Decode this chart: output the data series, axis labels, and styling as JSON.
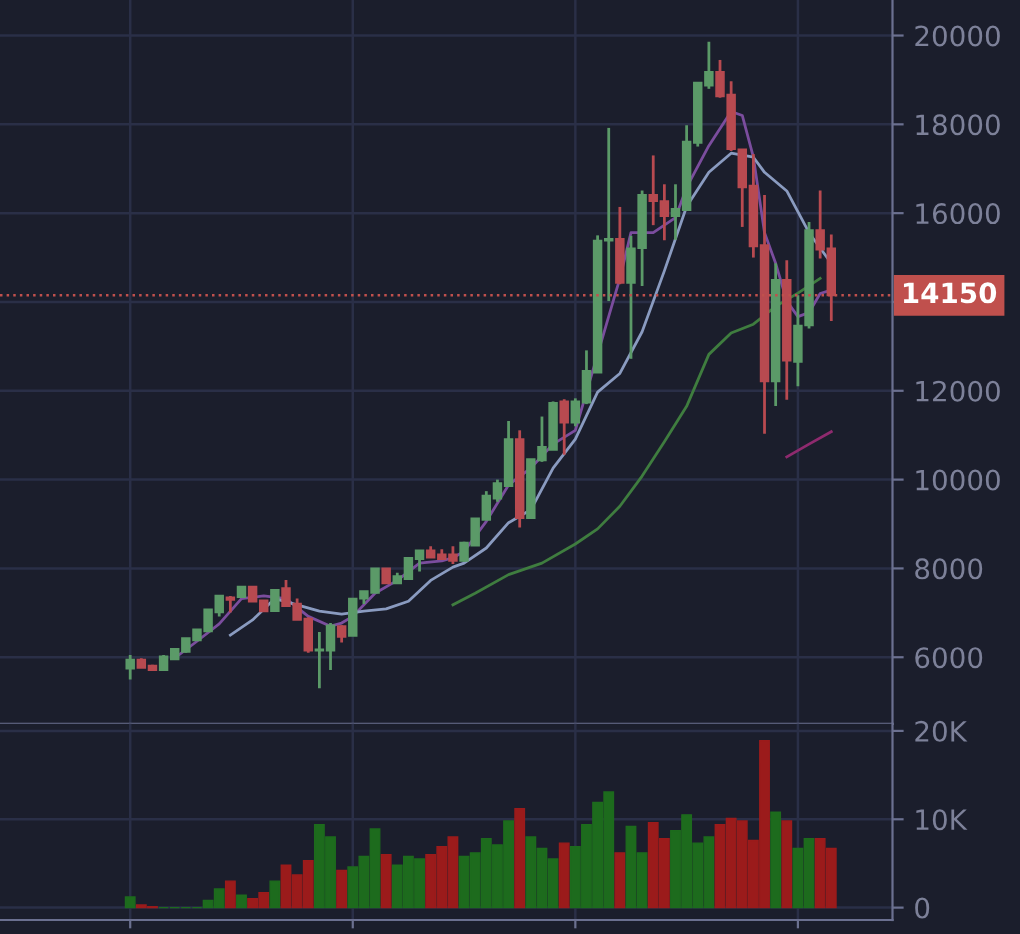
{
  "chart_data": [
    {
      "type": "candlestick",
      "categories": [
        null,
        null,
        null,
        null,
        null,
        null,
        null,
        null,
        null,
        null,
        null,
        null,
        null,
        null,
        null,
        null,
        null,
        null,
        null,
        null,
        null,
        null,
        null,
        null,
        null,
        null,
        null,
        null,
        null,
        null,
        null,
        null,
        null,
        null,
        null,
        null,
        null,
        null,
        null,
        null,
        null,
        null,
        null,
        null,
        null,
        null,
        null,
        null,
        null,
        null,
        null,
        null,
        null,
        null,
        null,
        null,
        null,
        null,
        null,
        null,
        null,
        null,
        null,
        null
      ],
      "ohlc": [
        [
          5740,
          6050,
          5500,
          5950
        ],
        [
          5950,
          5980,
          5760,
          5760
        ],
        [
          5810,
          5830,
          5710,
          5710
        ],
        [
          5710,
          6050,
          5700,
          6020
        ],
        [
          5950,
          6190,
          5950,
          6190
        ],
        [
          6120,
          6430,
          6100,
          6430
        ],
        [
          6380,
          6630,
          6380,
          6630
        ],
        [
          6580,
          7080,
          6580,
          7080
        ],
        [
          7010,
          7390,
          6920,
          7390
        ],
        [
          7350,
          7380,
          7010,
          7290
        ],
        [
          7350,
          7590,
          7350,
          7590
        ],
        [
          7590,
          7590,
          7250,
          7250
        ],
        [
          7280,
          7280,
          7030,
          7030
        ],
        [
          7040,
          7520,
          7040,
          7520
        ],
        [
          7560,
          7740,
          7150,
          7150
        ],
        [
          7210,
          7320,
          6840,
          6840
        ],
        [
          6870,
          6900,
          6100,
          6150
        ],
        [
          6150,
          6570,
          5300,
          6180
        ],
        [
          6150,
          6770,
          5710,
          6720
        ],
        [
          6700,
          6720,
          6330,
          6460
        ],
        [
          6480,
          7320,
          6480,
          7320
        ],
        [
          7320,
          7490,
          7200,
          7490
        ],
        [
          7450,
          8000,
          7450,
          8000
        ],
        [
          8000,
          8000,
          7660,
          7660
        ],
        [
          7660,
          7900,
          7660,
          7830
        ],
        [
          7760,
          8240,
          7760,
          8240
        ],
        [
          8210,
          8410,
          7930,
          8410
        ],
        [
          8410,
          8500,
          8240,
          8240
        ],
        [
          8320,
          8430,
          8200,
          8210
        ],
        [
          8320,
          8500,
          8100,
          8170
        ],
        [
          8170,
          8600,
          8150,
          8580
        ],
        [
          8510,
          9130,
          8510,
          9130
        ],
        [
          9090,
          9740,
          9090,
          9640
        ],
        [
          9570,
          10000,
          9500,
          9920
        ],
        [
          9850,
          11320,
          9850,
          10910
        ],
        [
          10910,
          11110,
          8920,
          9130
        ],
        [
          9130,
          10460,
          9130,
          10460
        ],
        [
          10430,
          11420,
          10400,
          10740
        ],
        [
          10670,
          11760,
          10670,
          11730
        ],
        [
          11760,
          11810,
          10560,
          11280
        ],
        [
          11280,
          11830,
          11200,
          11760
        ],
        [
          11730,
          12910,
          11700,
          12450
        ],
        [
          12410,
          15500,
          12400,
          15380
        ],
        [
          15380,
          17920,
          14020,
          15420
        ],
        [
          15420,
          16140,
          14400,
          14430
        ],
        [
          14430,
          15490,
          12720,
          15210
        ],
        [
          15210,
          16510,
          14360,
          16410
        ],
        [
          16410,
          17300,
          15730,
          16270
        ],
        [
          16270,
          16650,
          15390,
          15930
        ],
        [
          15930,
          16650,
          15400,
          16100
        ],
        [
          16070,
          17980,
          16050,
          17610
        ],
        [
          17580,
          18940,
          17500,
          18940
        ],
        [
          18870,
          19860,
          18800,
          19180
        ],
        [
          19180,
          19450,
          18600,
          18630
        ],
        [
          18670,
          18970,
          17400,
          17440
        ],
        [
          17440,
          17440,
          15690,
          16580
        ],
        [
          16620,
          17330,
          15000,
          15250
        ],
        [
          15280,
          16410,
          11030,
          12210
        ],
        [
          12210,
          14870,
          11660,
          14500
        ],
        [
          14500,
          14940,
          11800,
          12680
        ],
        [
          12650,
          14150,
          12100,
          13470
        ],
        [
          13470,
          15800,
          13400,
          15620
        ],
        [
          15620,
          16510,
          14980,
          15180
        ],
        [
          15210,
          15520,
          13570,
          14150
        ]
      ],
      "colors": [
        "#5b9a68",
        "#b84a50",
        "#b84a50",
        "#5b9a68",
        "#5b9a68",
        "#5b9a68",
        "#5b9a68",
        "#5b9a68",
        "#5b9a68",
        "#b84a50",
        "#5b9a68",
        "#b84a50",
        "#b84a50",
        "#5b9a68",
        "#b84a50",
        "#b84a50",
        "#b84a50",
        "#5b9a68",
        "#5b9a68",
        "#b84a50",
        "#5b9a68",
        "#5b9a68",
        "#5b9a68",
        "#b84a50",
        "#5b9a68",
        "#5b9a68",
        "#5b9a68",
        "#b84a50",
        "#b84a50",
        "#b84a50",
        "#5b9a68",
        "#5b9a68",
        "#5b9a68",
        "#5b9a68",
        "#5b9a68",
        "#b84a50",
        "#5b9a68",
        "#5b9a68",
        "#5b9a68",
        "#b84a50",
        "#5b9a68",
        "#5b9a68",
        "#5b9a68",
        "#5b9a68",
        "#b84a50",
        "#5b9a68",
        "#5b9a68",
        "#b84a50",
        "#b84a50",
        "#5b9a68",
        "#5b9a68",
        "#5b9a68",
        "#5b9a68",
        "#b84a50",
        "#b84a50",
        "#b84a50",
        "#b84a50",
        "#b84a50",
        "#5b9a68",
        "#b84a50",
        "#5b9a68",
        "#5b9a68",
        "#b84a50",
        "#b84a50"
      ],
      "series": [
        {
          "type": "line",
          "color": "#7b4d9e",
          "values": [
            null,
            null,
            null,
            null,
            5980,
            null,
            6360,
            null,
            6750,
            null,
            7320,
            null,
            7380,
            null,
            7320,
            null,
            6920,
            null,
            6700,
            6770,
            6920,
            null,
            7440,
            null,
            7730,
            null,
            8120,
            null,
            8170,
            8240,
            8380,
            null,
            9060,
            null,
            9880,
            null,
            10260,
            null,
            10800,
            null,
            11110,
            null,
            null,
            null,
            14530,
            15560,
            null,
            15560,
            null,
            15900,
            16580,
            null,
            17520,
            null,
            18290,
            18200,
            17260,
            15560,
            14870,
            14020,
            13670,
            13760,
            14190,
            14270
          ]
        },
        {
          "type": "line",
          "color": "#8a9bc0",
          "values": [
            null,
            null,
            null,
            null,
            null,
            null,
            null,
            null,
            null,
            6500,
            null,
            6840,
            null,
            7320,
            null,
            7180,
            null,
            7040,
            null,
            6970,
            null,
            7040,
            null,
            7090,
            null,
            7260,
            null,
            7730,
            null,
            8030,
            8120,
            null,
            8460,
            null,
            9030,
            null,
            9320,
            null,
            10260,
            null,
            10910,
            null,
            11970,
            null,
            12390,
            null,
            13330,
            null,
            14700,
            null,
            16150,
            null,
            16920,
            null,
            17350,
            null,
            17260,
            16920,
            null,
            16500,
            null,
            15560,
            null,
            14870
          ]
        },
        {
          "type": "line",
          "color": "#3f7d3f",
          "values": [
            null,
            null,
            null,
            null,
            null,
            null,
            null,
            null,
            null,
            null,
            null,
            null,
            null,
            null,
            null,
            null,
            null,
            null,
            null,
            null,
            null,
            null,
            null,
            null,
            null,
            null,
            null,
            null,
            null,
            7180,
            null,
            7440,
            null,
            null,
            7860,
            null,
            null,
            8120,
            null,
            null,
            8550,
            null,
            8890,
            null,
            9400,
            null,
            10080,
            null,
            10850,
            null,
            11650,
            null,
            12820,
            null,
            13300,
            null,
            13500,
            null,
            13900,
            null,
            14200,
            null,
            14530,
            null
          ]
        },
        {
          "type": "line",
          "color": "#8e2a6e",
          "values": [
            null,
            null,
            null,
            null,
            null,
            null,
            null,
            null,
            null,
            null,
            null,
            null,
            null,
            null,
            null,
            null,
            null,
            null,
            null,
            null,
            null,
            null,
            null,
            null,
            null,
            null,
            null,
            null,
            null,
            null,
            null,
            null,
            null,
            null,
            null,
            null,
            null,
            null,
            null,
            null,
            null,
            null,
            null,
            null,
            null,
            null,
            null,
            null,
            null,
            null,
            null,
            null,
            null,
            null,
            null,
            null,
            null,
            null,
            null,
            10510,
            null,
            10800,
            null,
            11080
          ]
        }
      ],
      "ylim": [
        4500,
        20800
      ],
      "yticks": [
        6000,
        8000,
        10000,
        12000,
        {
          "value": 14000,
          "label": null
        },
        16000,
        18000,
        20000
      ],
      "ref_lines": [
        {
          "axis": "y",
          "value": 14150,
          "label": "14150",
          "color": "#c0504d",
          "line_style": "dotted"
        }
      ],
      "grid": true,
      "tick_labels": "y"
    },
    {
      "type": "bar",
      "categories": [
        null,
        null,
        null,
        null,
        null,
        null,
        null,
        null,
        null,
        null,
        null,
        null,
        null,
        null,
        null,
        null,
        null,
        null,
        null,
        null,
        null,
        null,
        null,
        null,
        null,
        null,
        null,
        null,
        null,
        null,
        null,
        null,
        null,
        null,
        null,
        null,
        null,
        null,
        null,
        null,
        null,
        null,
        null,
        null,
        null,
        null,
        null,
        null,
        null,
        null,
        null,
        null,
        null,
        null,
        null,
        null,
        null,
        null,
        null,
        null,
        null,
        null,
        null,
        null
      ],
      "values": [
        1200,
        300,
        100,
        0,
        0,
        0,
        0,
        800,
        2100,
        3000,
        1400,
        1000,
        1700,
        3000,
        4800,
        3700,
        5300,
        9400,
        8000,
        4200,
        4600,
        5800,
        8900,
        6000,
        4800,
        5800,
        5500,
        6000,
        6900,
        8000,
        5800,
        6200,
        7800,
        7100,
        9800,
        11200,
        8000,
        6700,
        5500,
        7300,
        6900,
        9400,
        11900,
        13100,
        6200,
        9200,
        6200,
        9600,
        7800,
        8700,
        10500,
        7300,
        8000,
        9400,
        10100,
        9800,
        7600,
        18900,
        10800,
        9800,
        6700,
        7800,
        7800,
        6700
      ],
      "colors": [
        "#1d6b1d",
        "#9b1b1b",
        "#9b1b1b",
        "#1d6b1d",
        "#1d6b1d",
        "#1d6b1d",
        "#1d6b1d",
        "#1d6b1d",
        "#1d6b1d",
        "#9b1b1b",
        "#1d6b1d",
        "#9b1b1b",
        "#9b1b1b",
        "#1d6b1d",
        "#9b1b1b",
        "#9b1b1b",
        "#9b1b1b",
        "#1d6b1d",
        "#1d6b1d",
        "#9b1b1b",
        "#1d6b1d",
        "#1d6b1d",
        "#1d6b1d",
        "#9b1b1b",
        "#1d6b1d",
        "#1d6b1d",
        "#1d6b1d",
        "#9b1b1b",
        "#9b1b1b",
        "#9b1b1b",
        "#1d6b1d",
        "#1d6b1d",
        "#1d6b1d",
        "#1d6b1d",
        "#1d6b1d",
        "#9b1b1b",
        "#1d6b1d",
        "#1d6b1d",
        "#1d6b1d",
        "#9b1b1b",
        "#1d6b1d",
        "#1d6b1d",
        "#1d6b1d",
        "#1d6b1d",
        "#9b1b1b",
        "#1d6b1d",
        "#1d6b1d",
        "#9b1b1b",
        "#9b1b1b",
        "#1d6b1d",
        "#1d6b1d",
        "#1d6b1d",
        "#1d6b1d",
        "#9b1b1b",
        "#9b1b1b",
        "#9b1b1b",
        "#9b1b1b",
        "#9b1b1b",
        "#1d6b1d",
        "#9b1b1b",
        "#1d6b1d",
        "#1d6b1d",
        "#9b1b1b",
        "#9b1b1b"
      ],
      "ylim": [
        -1400,
        20800
      ],
      "yticks": [
        0,
        {
          "value": 10000,
          "label": "10K"
        },
        {
          "value": 20000,
          "label": "20K"
        }
      ],
      "grid": true,
      "tick_labels": "y"
    }
  ]
}
